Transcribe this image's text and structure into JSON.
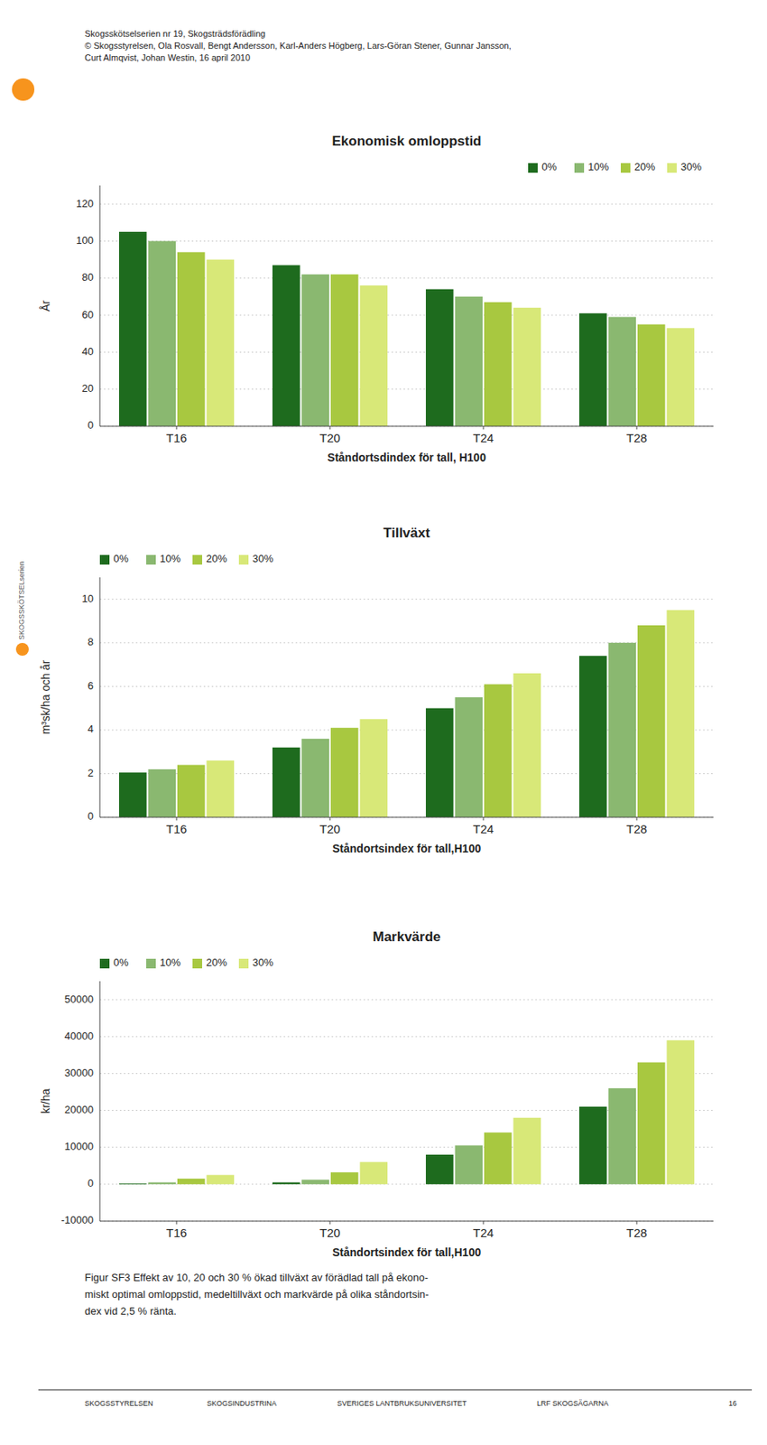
{
  "header": [
    "Skogsskötselserien nr 19, Skogsträdsförädling",
    "© Skogsstyrelsen, Ola Rosvall, Bengt Andersson, Karl-Anders Högberg, Lars-Göran Stener, Gunnar Jansson,",
    "Curt Almqvist, Johan Westin, 16 april 2010"
  ],
  "footer": "Figur SF3 Effekt av 10, 20 och 30 % ökad tillväxt av förädlad tall på ekono-\nmiskt optimal omloppstid, medeltillväxt och markvärde på olika ståndortsin-\ndex vid 2,5 % ränta.",
  "bottom_cols": [
    "SKOGSSTYRELSEN",
    "SKOGSINDUSTRINA",
    "SVERIGES LANTBRUKSUNIVERSITET",
    "LRF SKOGSÄGARNA",
    "16"
  ],
  "sidebar": {
    "text": "SKOGSSKÖTSELserien",
    "color": "#555555"
  },
  "logo_color": "#f7941d",
  "chart_data": [
    {
      "type": "bar",
      "title": "Ekonomisk omloppstid",
      "ylabel": "År",
      "xlabel": "Ståndortsdindex för tall, H100",
      "categories": [
        "T16",
        "T20",
        "T24",
        "T28"
      ],
      "series": [
        {
          "name": "0%",
          "color": "#1e6b1e",
          "values": [
            105,
            87,
            74,
            61
          ]
        },
        {
          "name": "10%",
          "color": "#8ab870",
          "values": [
            100,
            82,
            70,
            59
          ]
        },
        {
          "name": "20%",
          "color": "#a8c840",
          "values": [
            94,
            82,
            67,
            55
          ]
        },
        {
          "name": "30%",
          "color": "#d8e878",
          "values": [
            90,
            76,
            64,
            53
          ]
        }
      ],
      "ylim": [
        0,
        130
      ],
      "yticks": [
        0,
        20,
        40,
        60,
        80,
        100,
        120
      ],
      "grid": true,
      "legend": "upper right"
    },
    {
      "type": "bar",
      "title": "Tillväxt",
      "ylabel": "m³sk/ha och år",
      "xlabel": "Ståndortsindex för tall,H100",
      "categories": [
        "T16",
        "T20",
        "T24",
        "T28"
      ],
      "series": [
        {
          "name": "0%",
          "color": "#1e6b1e",
          "values": [
            2.05,
            3.2,
            5.0,
            7.4
          ]
        },
        {
          "name": "10%",
          "color": "#8ab870",
          "values": [
            2.2,
            3.6,
            5.5,
            8.0
          ]
        },
        {
          "name": "20%",
          "color": "#a8c840",
          "values": [
            2.4,
            4.1,
            6.1,
            8.8
          ]
        },
        {
          "name": "30%",
          "color": "#d8e878",
          "values": [
            2.6,
            4.5,
            6.6,
            9.5
          ]
        }
      ],
      "ylim": [
        0,
        11
      ],
      "yticks": [
        0,
        2,
        4,
        6,
        8,
        10
      ],
      "grid": true,
      "legend": "upper left"
    },
    {
      "type": "bar",
      "title": "Markvärde",
      "ylabel": "kr/ha",
      "xlabel": "Ståndortsindex för tall,H100",
      "categories": [
        "T16",
        "T20",
        "T24",
        "T28"
      ],
      "series": [
        {
          "name": "0%",
          "color": "#1e6b1e",
          "values": [
            200,
            500,
            8000,
            21000
          ]
        },
        {
          "name": "10%",
          "color": "#8ab870",
          "values": [
            500,
            1200,
            10500,
            26000
          ]
        },
        {
          "name": "20%",
          "color": "#a8c840",
          "values": [
            1500,
            3200,
            14000,
            33000
          ]
        },
        {
          "name": "30%",
          "color": "#d8e878",
          "values": [
            2500,
            6000,
            18000,
            39000
          ]
        }
      ],
      "ylim": [
        -10000,
        55000
      ],
      "yticks": [
        -10000,
        0,
        10000,
        20000,
        30000,
        40000,
        50000
      ],
      "grid": true,
      "legend": "upper left"
    }
  ]
}
